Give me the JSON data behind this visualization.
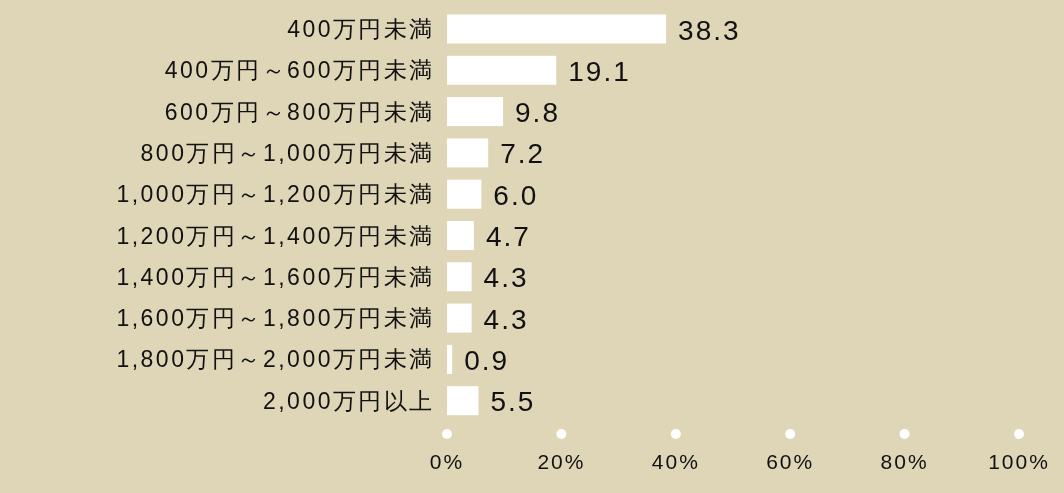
{
  "chart_data": {
    "type": "bar",
    "orientation": "horizontal",
    "categories": [
      "400万円未満",
      "400万円～600万円未満",
      "600万円～800万円未満",
      "800万円～1,000万円未満",
      "1,000万円～1,200万円未満",
      "1,200万円～1,400万円未満",
      "1,400万円～1,600万円未満",
      "1,600万円～1,800万円未満",
      "1,800万円～2,000万円未満",
      "2,000万円以上"
    ],
    "values": [
      38.3,
      19.1,
      9.8,
      7.2,
      6.0,
      4.7,
      4.3,
      4.3,
      0.9,
      5.5
    ],
    "value_labels": [
      "38.3",
      "19.1",
      "9.8",
      "7.2",
      "6.0",
      "4.7",
      "4.3",
      "4.3",
      "0.9",
      "5.5"
    ],
    "color": "#ffffff",
    "xlim": [
      0,
      100
    ],
    "xticks": [
      {
        "value": 0,
        "label": "0%"
      },
      {
        "value": 20,
        "label": "20%"
      },
      {
        "value": 40,
        "label": "40%"
      },
      {
        "value": 60,
        "label": "60%"
      },
      {
        "value": 80,
        "label": "80%"
      },
      {
        "value": 100,
        "label": "100%"
      }
    ]
  }
}
